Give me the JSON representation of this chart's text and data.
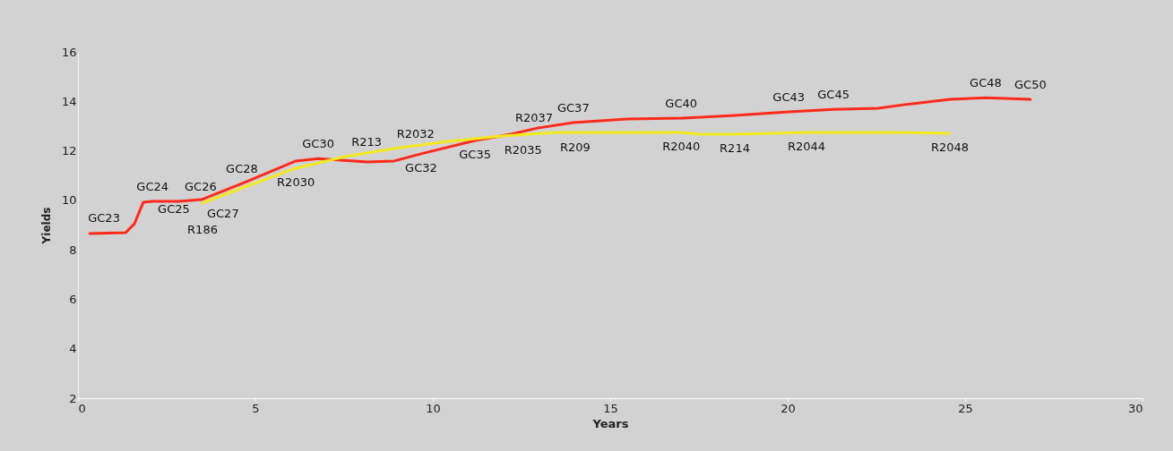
{
  "chart_data": {
    "type": "line",
    "xlabel": "Years",
    "ylabel": "Yields",
    "xlim": [
      0,
      30
    ],
    "xticks": [
      0,
      5,
      10,
      15,
      20,
      25,
      30
    ],
    "ylim": [
      2,
      16
    ],
    "yticks": [
      2,
      4,
      6,
      8,
      10,
      12,
      14,
      16
    ],
    "grid": false,
    "marker": "none",
    "line_style": "solid",
    "series": [
      {
        "color": "#ff2a1a",
        "x": [
          0.33,
          1.34,
          1.59,
          1.84,
          2.1,
          2.85,
          3.48,
          4.62,
          6.14,
          6.77,
          7.4,
          8.16,
          8.91,
          9.67,
          11.19,
          12.2,
          12.95,
          13.96,
          15.48,
          17.0,
          18.51,
          20.03,
          21.29,
          22.55,
          23.31,
          24.57,
          25.58,
          26.84
        ],
        "values": [
          8.66,
          8.69,
          9.05,
          9.92,
          9.96,
          9.96,
          10.03,
          10.68,
          11.59,
          11.69,
          11.62,
          11.55,
          11.59,
          11.88,
          12.42,
          12.67,
          12.92,
          13.14,
          13.29,
          13.32,
          13.43,
          13.58,
          13.68,
          13.72,
          13.87,
          14.08,
          14.15,
          14.08
        ]
      },
      {
        "color": "#f2ea1c",
        "x": [
          3.51,
          4.62,
          6.14,
          7.53,
          8.91,
          10.43,
          11.94,
          13.46,
          15.48,
          17.0,
          17.5,
          18.51,
          20.53,
          23.06,
          24.57
        ],
        "values": [
          9.89,
          10.5,
          11.3,
          11.77,
          12.09,
          12.38,
          12.6,
          12.74,
          12.74,
          12.74,
          12.67,
          12.67,
          12.74,
          12.74,
          12.71
        ]
      }
    ],
    "annotations": [
      {
        "text": "GC23",
        "x": 1.34,
        "y": 8.69
      },
      {
        "text": "GC24",
        "x": 2.1,
        "y": 9.96
      },
      {
        "text": "GC25",
        "x": 1.59,
        "y": 9.05
      },
      {
        "text": "GC26",
        "x": 2.85,
        "y": 9.96
      },
      {
        "text": "R186",
        "x": 3.51,
        "y": 9.89
      },
      {
        "text": "GC27",
        "x": 3.48,
        "y": 10.03
      },
      {
        "text": "GC28",
        "x": 4.62,
        "y": 10.68
      },
      {
        "text": "GC30",
        "x": 6.77,
        "y": 11.69
      },
      {
        "text": "R2030",
        "x": 6.14,
        "y": 11.3
      },
      {
        "text": "R213",
        "x": 7.53,
        "y": 11.77
      },
      {
        "text": "R2032",
        "x": 8.91,
        "y": 12.09
      },
      {
        "text": "GC32",
        "x": 9.67,
        "y": 11.88
      },
      {
        "text": "GC35",
        "x": 11.19,
        "y": 12.42
      },
      {
        "text": "R2035",
        "x": 11.94,
        "y": 12.6
      },
      {
        "text": "R2037",
        "x": 13.46,
        "y": 12.74
      },
      {
        "text": "R209",
        "x": 12.9,
        "y": 12.69
      },
      {
        "text": "GC37",
        "x": 13.96,
        "y": 13.14
      },
      {
        "text": "GC40",
        "x": 17.0,
        "y": 13.32
      },
      {
        "text": "R2040",
        "x": 17.0,
        "y": 12.74
      },
      {
        "text": "R214",
        "x": 18.51,
        "y": 12.67
      },
      {
        "text": "GC43",
        "x": 20.03,
        "y": 13.58
      },
      {
        "text": "R2044",
        "x": 20.53,
        "y": 12.74
      },
      {
        "text": "GC45",
        "x": 21.29,
        "y": 13.68
      },
      {
        "text": "GC48",
        "x": 25.58,
        "y": 14.15
      },
      {
        "text": "GC50",
        "x": 26.84,
        "y": 14.08
      },
      {
        "text": "R2048",
        "x": 24.57,
        "y": 12.71
      }
    ]
  }
}
